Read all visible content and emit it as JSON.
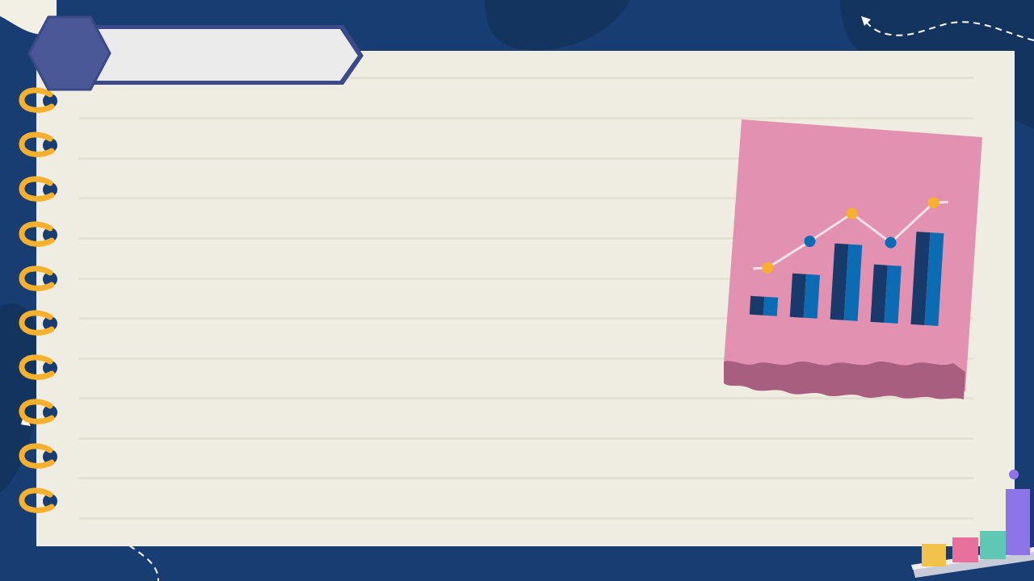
{
  "slide": {
    "title": ""
  },
  "colors": {
    "background": "#173d72",
    "background_blob": "#12345f",
    "paper": "#efede1",
    "paper_rule": "#e5e2d3",
    "ring_gold": "#f5b02e",
    "ring_hole": "#173d72",
    "banner_hexagon": "#4a5897",
    "banner_label": "#ebebeb",
    "banner_border": "#3b4a87",
    "sticky_note": "#e291b0",
    "sticky_torn_edge": "#a85e7e",
    "bar_dark": "#183a6b",
    "bar_light": "#0b6cb4",
    "dot_gold": "#f5b02e",
    "dot_blue": "#0b6cb4",
    "trend_line": "#f4e1e8"
  },
  "icons": {
    "spiral": "spiral-binding-rings",
    "sticky_illustration": "bar-chart-with-trend-line-icon",
    "corner_illustration": "3d-bar-chart-icon",
    "decorative_arrows": "dashed-curved-arrow"
  },
  "illustration_data": {
    "bar_heights": [
      0.2,
      0.47,
      0.82,
      0.62,
      1.0
    ],
    "trend_points": [
      0.38,
      0.62,
      0.87,
      0.65,
      1.0
    ],
    "trend_point_colors": [
      "gold",
      "blue",
      "gold",
      "blue",
      "gold"
    ]
  }
}
